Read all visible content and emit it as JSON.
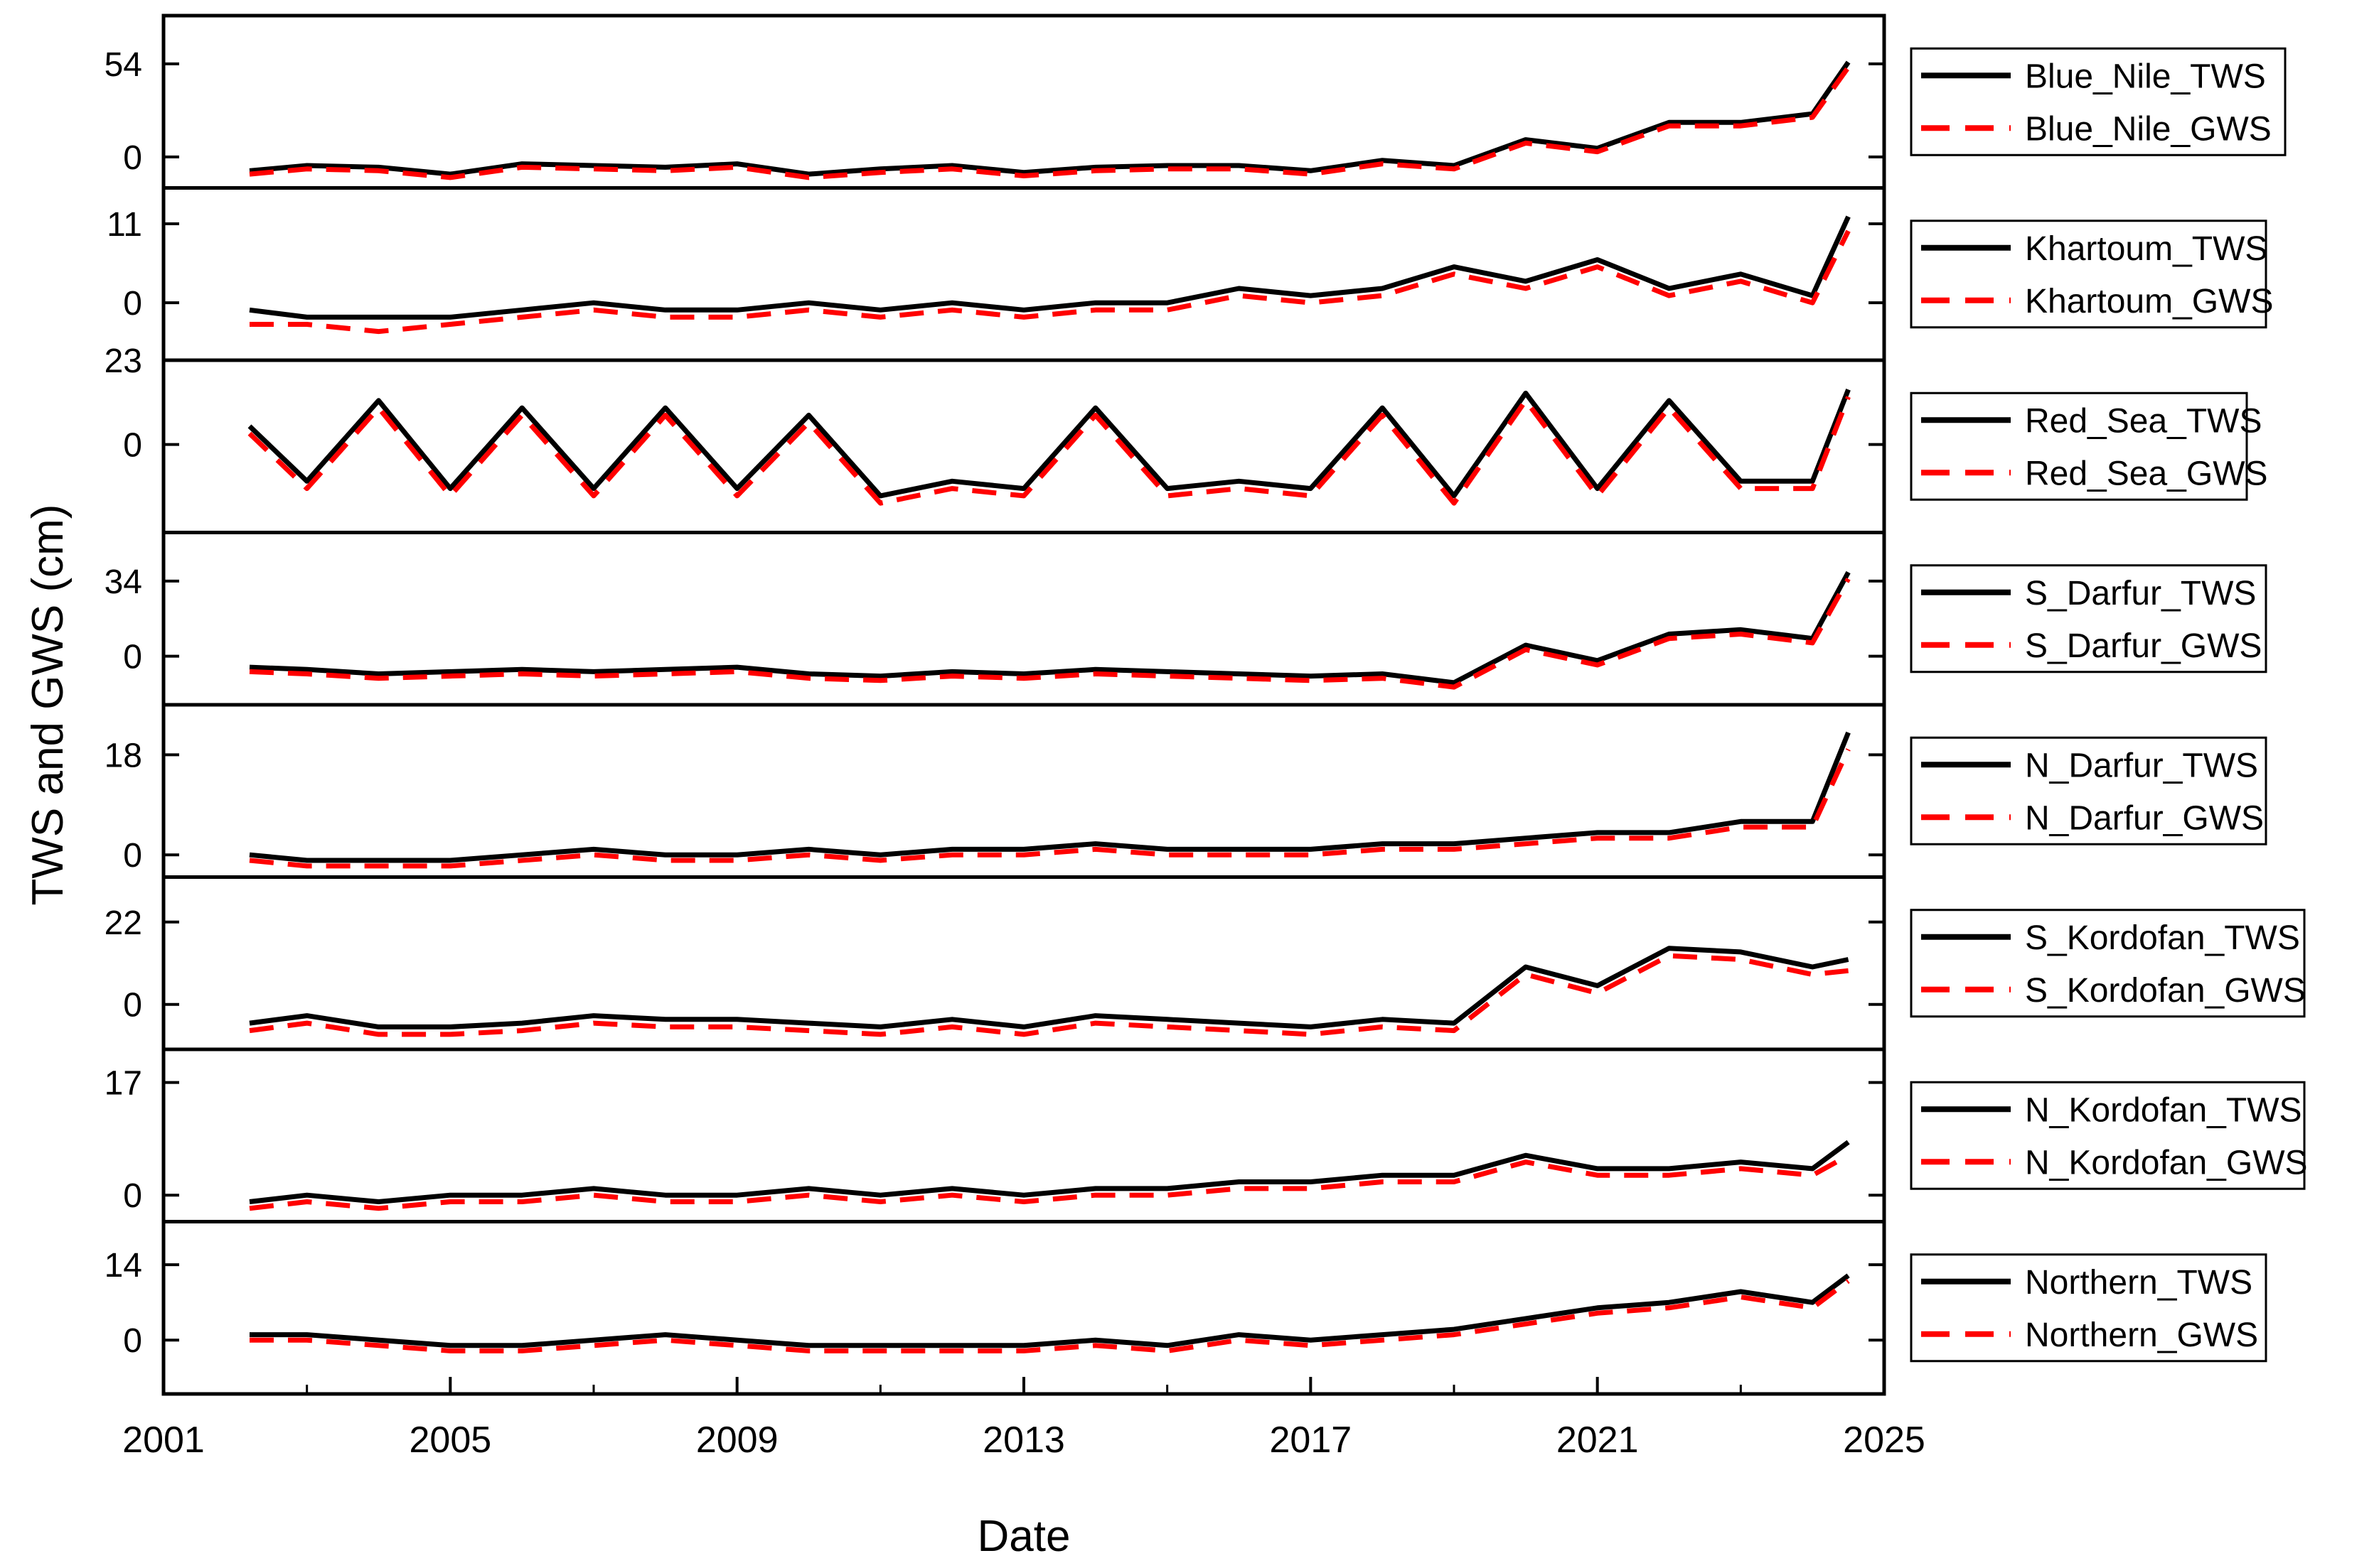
{
  "chart_data": {
    "type": "line",
    "ylabel": "TWS and GWS (cm)",
    "xlabel": "Date",
    "xlim": [
      2001,
      2025
    ],
    "xticks": [
      2001,
      2005,
      2009,
      2013,
      2017,
      2021,
      2025
    ],
    "x": [
      2002.2,
      2003.0,
      2004.0,
      2005.0,
      2006.0,
      2007.0,
      2008.0,
      2009.0,
      2010.0,
      2011.0,
      2012.0,
      2013.0,
      2014.0,
      2015.0,
      2016.0,
      2017.0,
      2018.0,
      2019.0,
      2020.0,
      2021.0,
      2022.0,
      2023.0,
      2024.0,
      2024.5
    ],
    "panels": [
      {
        "name": "Blue_Nile",
        "ylim": [
          -18,
          82
        ],
        "yticks": [
          0,
          54
        ],
        "legend": [
          "Blue_Nile_TWS",
          "Blue_Nile_GWS"
        ],
        "series": [
          {
            "name": "Blue_Nile_TWS",
            "values": [
              -8,
              -5,
              -6,
              -10,
              -4,
              -5,
              -6,
              -4,
              -10,
              -7,
              -5,
              -9,
              -6,
              -5,
              -5,
              -8,
              -2,
              -5,
              10,
              5,
              20,
              20,
              25,
              55
            ]
          },
          {
            "name": "Blue_Nile_GWS",
            "values": [
              -10,
              -7,
              -8,
              -12,
              -6,
              -7,
              -8,
              -6,
              -12,
              -9,
              -7,
              -11,
              -8,
              -7,
              -7,
              -10,
              -4,
              -7,
              8,
              3,
              18,
              18,
              23,
              52
            ]
          }
        ]
      },
      {
        "name": "Khartoum",
        "ylim": [
          -8,
          16
        ],
        "yticks": [
          0,
          11
        ],
        "legend": [
          "Khartoum_TWS",
          "Khartoum_GWS"
        ],
        "series": [
          {
            "name": "Khartoum_TWS",
            "values": [
              -1,
              -2,
              -2,
              -2,
              -1,
              0,
              -1,
              -1,
              0,
              -1,
              0,
              -1,
              0,
              0,
              2,
              1,
              2,
              5,
              3,
              6,
              2,
              4,
              1,
              12
            ]
          },
          {
            "name": "Khartoum_GWS",
            "values": [
              -3,
              -3,
              -4,
              -3,
              -2,
              -1,
              -2,
              -2,
              -1,
              -2,
              -1,
              -2,
              -1,
              -1,
              1,
              0,
              1,
              4,
              2,
              5,
              1,
              3,
              0,
              10
            ]
          }
        ]
      },
      {
        "name": "Red_Sea",
        "ylim": [
          -24,
          23
        ],
        "yticks": [
          0,
          23
        ],
        "legend": [
          "Red_Sea_TWS",
          "Red_Sea_GWS"
        ],
        "series": [
          {
            "name": "Red_Sea_TWS",
            "values": [
              5,
              -10,
              12,
              -12,
              10,
              -12,
              10,
              -12,
              8,
              -14,
              -10,
              -12,
              10,
              -12,
              -10,
              -12,
              10,
              -14,
              14,
              -12,
              12,
              -10,
              -10,
              15
            ]
          },
          {
            "name": "Red_Sea_GWS",
            "values": [
              3,
              -12,
              10,
              -14,
              8,
              -14,
              8,
              -14,
              6,
              -16,
              -12,
              -14,
              8,
              -14,
              -12,
              -14,
              8,
              -16,
              12,
              -14,
              10,
              -12,
              -12,
              13
            ]
          }
        ]
      },
      {
        "name": "S_Darfur",
        "ylim": [
          -22,
          56
        ],
        "yticks": [
          0,
          34
        ],
        "legend": [
          "S_Darfur_TWS",
          "S_Darfur_GWS"
        ],
        "series": [
          {
            "name": "S_Darfur_TWS",
            "values": [
              -5,
              -6,
              -8,
              -7,
              -6,
              -7,
              -6,
              -5,
              -8,
              -9,
              -7,
              -8,
              -6,
              -7,
              -8,
              -9,
              -8,
              -12,
              5,
              -2,
              10,
              12,
              8,
              38
            ]
          },
          {
            "name": "S_Darfur_GWS",
            "values": [
              -7,
              -8,
              -10,
              -9,
              -8,
              -9,
              -8,
              -7,
              -10,
              -11,
              -9,
              -10,
              -8,
              -9,
              -10,
              -11,
              -10,
              -14,
              3,
              -4,
              8,
              10,
              6,
              35
            ]
          }
        ]
      },
      {
        "name": "N_Darfur",
        "ylim": [
          -4,
          27
        ],
        "yticks": [
          0,
          18
        ],
        "legend": [
          "N_Darfur_TWS",
          "N_Darfur_GWS"
        ],
        "series": [
          {
            "name": "N_Darfur_TWS",
            "values": [
              0,
              -1,
              -1,
              -1,
              0,
              1,
              0,
              0,
              1,
              0,
              1,
              1,
              2,
              1,
              1,
              1,
              2,
              2,
              3,
              4,
              4,
              6,
              6,
              22
            ]
          },
          {
            "name": "N_Darfur_GWS",
            "values": [
              -1,
              -2,
              -2,
              -2,
              -1,
              0,
              -1,
              -1,
              0,
              -1,
              0,
              0,
              1,
              0,
              0,
              0,
              1,
              1,
              2,
              3,
              3,
              5,
              5,
              19
            ]
          }
        ]
      },
      {
        "name": "S_Kordofan",
        "ylim": [
          -12,
          34
        ],
        "yticks": [
          0,
          22
        ],
        "legend": [
          "S_Kordofan_TWS",
          "S_Kordofan_GWS"
        ],
        "series": [
          {
            "name": "S_Kordofan_TWS",
            "values": [
              -5,
              -3,
              -6,
              -6,
              -5,
              -3,
              -4,
              -4,
              -5,
              -6,
              -4,
              -6,
              -3,
              -4,
              -5,
              -6,
              -4,
              -5,
              10,
              5,
              15,
              14,
              10,
              12
            ]
          },
          {
            "name": "S_Kordofan_GWS",
            "values": [
              -7,
              -5,
              -8,
              -8,
              -7,
              -5,
              -6,
              -6,
              -7,
              -8,
              -6,
              -8,
              -5,
              -6,
              -7,
              -8,
              -6,
              -7,
              8,
              3,
              13,
              12,
              8,
              9
            ]
          }
        ]
      },
      {
        "name": "N_Kordofan",
        "ylim": [
          -4,
          22
        ],
        "yticks": [
          0,
          17
        ],
        "legend": [
          "N_Kordofan_TWS",
          "N_Kordofan_GWS"
        ],
        "series": [
          {
            "name": "N_Kordofan_TWS",
            "values": [
              -1,
              0,
              -1,
              0,
              0,
              1,
              0,
              0,
              1,
              0,
              1,
              0,
              1,
              1,
              2,
              2,
              3,
              3,
              6,
              4,
              4,
              5,
              4,
              8
            ]
          },
          {
            "name": "N_Kordofan_GWS",
            "values": [
              -2,
              -1,
              -2,
              -1,
              -1,
              0,
              -1,
              -1,
              0,
              -1,
              0,
              -1,
              0,
              0,
              1,
              1,
              2,
              2,
              5,
              3,
              3,
              4,
              3,
              6
            ]
          }
        ]
      },
      {
        "name": "Northern",
        "ylim": [
          -10,
          22
        ],
        "yticks": [
          0,
          14
        ],
        "legend": [
          "Northern_TWS",
          "Northern_GWS"
        ],
        "series": [
          {
            "name": "Northern_TWS",
            "values": [
              1,
              1,
              0,
              -1,
              -1,
              0,
              1,
              0,
              -1,
              -1,
              -1,
              -1,
              0,
              -1,
              1,
              0,
              1,
              2,
              4,
              6,
              7,
              9,
              7,
              12
            ]
          },
          {
            "name": "Northern_GWS",
            "values": [
              0,
              0,
              -1,
              -2,
              -2,
              -1,
              0,
              -1,
              -2,
              -2,
              -2,
              -2,
              -1,
              -2,
              0,
              -1,
              0,
              1,
              3,
              5,
              6,
              8,
              6,
              11
            ]
          }
        ]
      }
    ]
  },
  "colors": {
    "tws": "#000000",
    "gws": "#ff0000"
  }
}
